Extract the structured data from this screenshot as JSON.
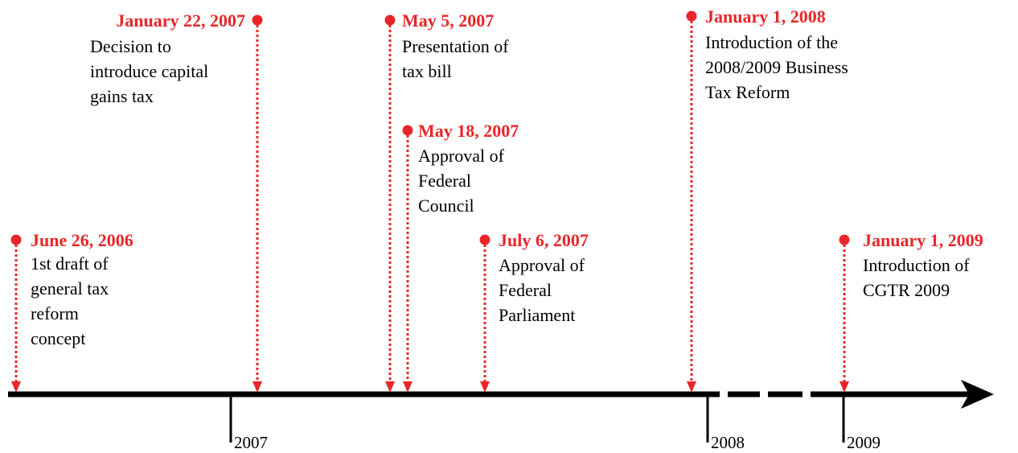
{
  "events": [
    {
      "date": "June 26, 2006",
      "lines": [
        "1st draft of",
        "general tax",
        "reform",
        "concept"
      ]
    },
    {
      "date": "January 22, 2007",
      "lines": [
        "Decision to",
        "introduce capital",
        "gains tax"
      ]
    },
    {
      "date": "May 5, 2007",
      "lines": [
        "Presentation of",
        "tax bill"
      ]
    },
    {
      "date": "May 18, 2007",
      "lines": [
        "Approval of",
        "Federal",
        "Council"
      ]
    },
    {
      "date": "July 6, 2007",
      "lines": [
        "Approval of",
        "Federal",
        "Parliament"
      ]
    },
    {
      "date": "January 1, 2008",
      "lines": [
        "Introduction of the",
        "2008/2009 Business",
        "Tax Reform"
      ]
    },
    {
      "date": "January 1, 2009",
      "lines": [
        "Introduction of",
        "CGTR 2009"
      ]
    }
  ],
  "years": [
    "2007",
    "2008",
    "2009"
  ]
}
